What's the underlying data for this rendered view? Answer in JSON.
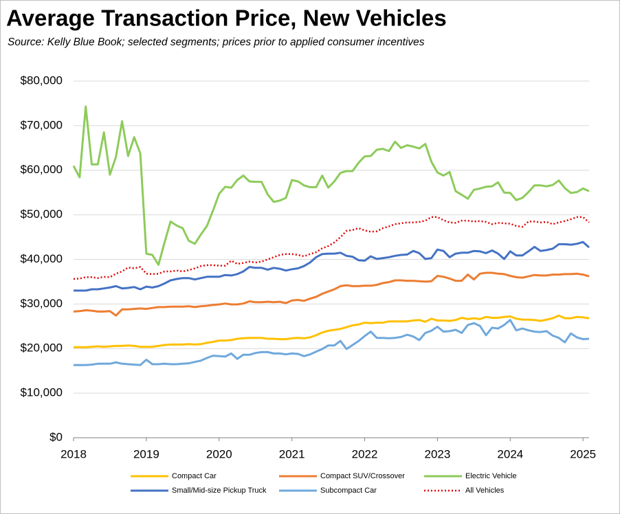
{
  "chart_data": {
    "type": "line",
    "title": "Average Transaction Price, New Vehicles",
    "subtitle": "Source:  Kelly Blue Book; selected segments; prices prior to applied consumer incentives",
    "x": [
      2018,
      2018.083,
      2018.167,
      2018.25,
      2018.333,
      2018.417,
      2018.5,
      2018.583,
      2018.667,
      2018.75,
      2018.833,
      2018.917,
      2019,
      2019.083,
      2019.167,
      2019.25,
      2019.333,
      2019.417,
      2019.5,
      2019.583,
      2019.667,
      2019.75,
      2019.833,
      2019.917,
      2020,
      2020.083,
      2020.167,
      2020.25,
      2020.333,
      2020.417,
      2020.5,
      2020.583,
      2020.667,
      2020.75,
      2020.833,
      2020.917,
      2021,
      2021.083,
      2021.167,
      2021.25,
      2021.333,
      2021.417,
      2021.5,
      2021.583,
      2021.667,
      2021.75,
      2021.833,
      2021.917,
      2022,
      2022.083,
      2022.167,
      2022.25,
      2022.333,
      2022.417,
      2022.5,
      2022.583,
      2022.667,
      2022.75,
      2022.833,
      2022.917,
      2023,
      2023.083,
      2023.167,
      2023.25,
      2023.333,
      2023.417,
      2023.5,
      2023.583,
      2023.667,
      2023.75,
      2023.833,
      2023.917,
      2024,
      2024.083,
      2024.167,
      2024.25,
      2024.333,
      2024.417,
      2024.5,
      2024.583,
      2024.667,
      2024.75,
      2024.833,
      2024.917,
      2025,
      2025.083
    ],
    "series": [
      {
        "name": "Compact Car",
        "color": "#FFC000",
        "style": "solid",
        "values": [
          20300,
          20300,
          20300,
          20400,
          20500,
          20400,
          20500,
          20600,
          20600,
          20700,
          20600,
          20400,
          20400,
          20400,
          20600,
          20800,
          20900,
          20900,
          20900,
          21000,
          20900,
          21000,
          21300,
          21500,
          21800,
          21800,
          21900,
          22200,
          22300,
          22400,
          22400,
          22400,
          22200,
          22200,
          22100,
          22100,
          22300,
          22400,
          22300,
          22500,
          23000,
          23600,
          24000,
          24200,
          24400,
          24800,
          25200,
          25400,
          25800,
          25700,
          25800,
          25800,
          26100,
          26100,
          26100,
          26100,
          26300,
          26400,
          26000,
          26700,
          26300,
          26300,
          26200,
          26400,
          26900,
          26600,
          26800,
          26600,
          27100,
          26900,
          26900,
          27100,
          27200,
          26700,
          26500,
          26500,
          26400,
          26200,
          26500,
          26800,
          27400,
          26800,
          26800,
          27100,
          27000,
          26800
        ]
      },
      {
        "name": "Compact SUV/Crossover",
        "color": "#ED7D31",
        "style": "solid",
        "values": [
          28300,
          28400,
          28600,
          28500,
          28300,
          28300,
          28400,
          27400,
          28800,
          28800,
          28900,
          29000,
          28900,
          29100,
          29300,
          29300,
          29400,
          29400,
          29400,
          29500,
          29300,
          29500,
          29600,
          29800,
          29900,
          30100,
          29900,
          29900,
          30100,
          30600,
          30400,
          30400,
          30500,
          30400,
          30500,
          30200,
          30800,
          30900,
          30700,
          31200,
          31600,
          32300,
          32800,
          33300,
          34000,
          34200,
          34000,
          34000,
          34100,
          34100,
          34300,
          34700,
          34900,
          35300,
          35300,
          35200,
          35200,
          35100,
          35000,
          35100,
          36300,
          36100,
          35700,
          35200,
          35200,
          36600,
          35500,
          36800,
          37000,
          37000,
          36800,
          36700,
          36300,
          36000,
          35900,
          36200,
          36500,
          36400,
          36400,
          36600,
          36600,
          36700,
          36700,
          36800,
          36600,
          36200
        ]
      },
      {
        "name": "Electric Vehicle",
        "color": "#8DCB5A",
        "style": "solid",
        "values": [
          61000,
          58400,
          74300,
          61300,
          61300,
          68500,
          59000,
          63000,
          71000,
          63200,
          67400,
          63800,
          41300,
          41000,
          38800,
          43800,
          48500,
          47600,
          47000,
          44200,
          43500,
          45600,
          47500,
          51000,
          54700,
          56300,
          56100,
          57800,
          58800,
          57500,
          57400,
          57400,
          54600,
          52900,
          53200,
          53800,
          57800,
          57500,
          56600,
          56200,
          56200,
          58800,
          56100,
          57500,
          59400,
          59800,
          59800,
          61700,
          63100,
          63200,
          64600,
          64800,
          64300,
          66400,
          65000,
          65600,
          65300,
          64900,
          65900,
          61900,
          59500,
          58800,
          59600,
          55300,
          54500,
          53600,
          55600,
          55900,
          56300,
          56400,
          57300,
          55000,
          54900,
          53300,
          53800,
          55100,
          56600,
          56600,
          56400,
          56700,
          57700,
          56000,
          54900,
          55100,
          55900,
          55300
        ]
      },
      {
        "name": "Small/Mid-size Pickup Truck",
        "color": "#4472C4",
        "style": "solid",
        "values": [
          33000,
          33000,
          33000,
          33300,
          33300,
          33500,
          33700,
          34000,
          33500,
          33600,
          33800,
          33300,
          33900,
          33700,
          34000,
          34600,
          35300,
          35600,
          35800,
          35800,
          35500,
          35800,
          36100,
          36100,
          36100,
          36500,
          36400,
          36700,
          37300,
          38300,
          38100,
          38100,
          37700,
          38100,
          37900,
          37500,
          37800,
          38000,
          38500,
          39300,
          40500,
          41200,
          41300,
          41300,
          41500,
          40800,
          40600,
          39800,
          39700,
          40700,
          40100,
          40300,
          40500,
          40800,
          41000,
          41100,
          41900,
          41400,
          40100,
          40300,
          42200,
          41900,
          40500,
          41300,
          41500,
          41500,
          41900,
          41800,
          41400,
          42000,
          41300,
          40100,
          41800,
          40900,
          40900,
          41800,
          42800,
          41900,
          42100,
          42400,
          43400,
          43400,
          43300,
          43500,
          43900,
          42700
        ]
      },
      {
        "name": "Subcompact Car",
        "color": "#6FA8DC",
        "style": "solid",
        "values": [
          16300,
          16300,
          16300,
          16400,
          16600,
          16600,
          16600,
          16900,
          16600,
          16500,
          16400,
          16300,
          17500,
          16500,
          16500,
          16600,
          16500,
          16500,
          16600,
          16700,
          17000,
          17300,
          17900,
          18400,
          18300,
          18200,
          18900,
          17700,
          18600,
          18600,
          19000,
          19200,
          19200,
          18900,
          18900,
          18700,
          18900,
          18800,
          18300,
          18700,
          19300,
          19900,
          20700,
          20700,
          21700,
          19900,
          20800,
          21700,
          22800,
          23800,
          22400,
          22400,
          22300,
          22400,
          22600,
          23100,
          22700,
          21900,
          23500,
          24000,
          24900,
          23800,
          23900,
          24200,
          23500,
          25300,
          25700,
          25100,
          23000,
          24700,
          24500,
          25300,
          26400,
          24100,
          24500,
          24100,
          23800,
          23700,
          23900,
          22900,
          22400,
          21400,
          23400,
          22500,
          22100,
          22200
        ]
      },
      {
        "name": "All Vehicles",
        "color": "#E00000",
        "style": "dotted",
        "values": [
          35600,
          35700,
          36000,
          36000,
          35800,
          36100,
          36000,
          36800,
          37300,
          38200,
          38000,
          38300,
          36800,
          36700,
          36800,
          37300,
          37300,
          37500,
          37300,
          37600,
          38000,
          38500,
          38700,
          38700,
          38600,
          38600,
          39700,
          39000,
          39200,
          39500,
          39300,
          39500,
          40000,
          40500,
          41000,
          41200,
          41200,
          41000,
          40700,
          41200,
          41600,
          42500,
          43000,
          43800,
          45000,
          46400,
          46600,
          47000,
          46500,
          46200,
          46300,
          47000,
          47400,
          47900,
          48100,
          48300,
          48300,
          48400,
          48700,
          49500,
          49500,
          48800,
          48300,
          48200,
          48700,
          48700,
          48500,
          48600,
          48400,
          47900,
          48200,
          48100,
          48000,
          47500,
          47300,
          48500,
          48500,
          48300,
          48400,
          47900,
          48300,
          48600,
          49000,
          49500,
          49500,
          48300
        ]
      }
    ],
    "xlim": [
      2018,
      2025.083
    ],
    "xticks": [
      2018,
      2019,
      2020,
      2021,
      2022,
      2023,
      2024,
      2025
    ],
    "ylim": [
      0,
      80000
    ],
    "yticks": [
      {
        "value": 0,
        "label": "$0"
      },
      {
        "value": 10000,
        "label": "$10,000"
      },
      {
        "value": 20000,
        "label": "$20,000"
      },
      {
        "value": 30000,
        "label": "$30,000"
      },
      {
        "value": 40000,
        "label": "$40,000"
      },
      {
        "value": 50000,
        "label": "$50,000"
      },
      {
        "value": 60000,
        "label": "$60,000"
      },
      {
        "value": 70000,
        "label": "$70,000"
      },
      {
        "value": 80000,
        "label": "$80,000"
      }
    ],
    "grid": true,
    "legend": "bottom"
  }
}
